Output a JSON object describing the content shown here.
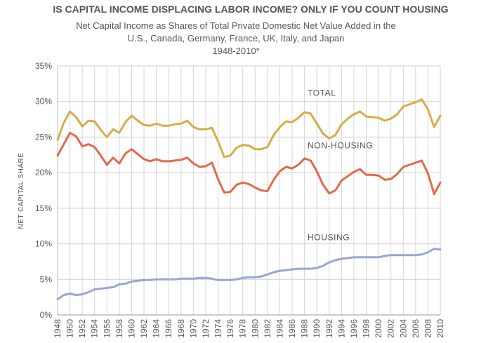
{
  "chart_data": {
    "type": "line",
    "title": "IS CAPITAL INCOME DISPLACING LABOR INCOME? ONLY IF YOU COUNT HOUSING",
    "subtitle_lines": [
      "Net Capital Income as Shares of Total Private Domestic Net Value Added in the",
      "U.S., Canada, Germany, France, UK, Italy, and Japan",
      "1948-2010*"
    ],
    "ylabel": "NET CAPITAL SHARE",
    "xlabel": "",
    "ylim": [
      0,
      35
    ],
    "xlim": [
      1948,
      2010
    ],
    "yticks": [
      0,
      5,
      10,
      15,
      20,
      25,
      30,
      35
    ],
    "ytick_labels": [
      "0%",
      "5%",
      "10%",
      "15%",
      "20%",
      "25%",
      "30%",
      "35%"
    ],
    "xticks": [
      1948,
      1950,
      1952,
      1954,
      1956,
      1958,
      1960,
      1962,
      1964,
      1966,
      1968,
      1970,
      1972,
      1974,
      1976,
      1978,
      1980,
      1982,
      1984,
      1986,
      1988,
      1990,
      1992,
      1994,
      1996,
      1998,
      2000,
      2002,
      2004,
      2006,
      2008,
      2010
    ],
    "grid": true,
    "x": [
      1948,
      1949,
      1950,
      1951,
      1952,
      1953,
      1954,
      1955,
      1956,
      1957,
      1958,
      1959,
      1960,
      1961,
      1962,
      1963,
      1964,
      1965,
      1966,
      1967,
      1968,
      1969,
      1970,
      1971,
      1972,
      1973,
      1974,
      1975,
      1976,
      1977,
      1978,
      1979,
      1980,
      1981,
      1982,
      1983,
      1984,
      1985,
      1986,
      1987,
      1988,
      1989,
      1990,
      1991,
      1992,
      1993,
      1994,
      1995,
      1996,
      1997,
      1998,
      1999,
      2000,
      2001,
      2002,
      2003,
      2004,
      2005,
      2006,
      2007,
      2008,
      2009,
      2010
    ],
    "series": [
      {
        "name": "TOTAL",
        "color": "#D4AE48",
        "values": [
          24.6,
          27.0,
          28.6,
          27.8,
          26.5,
          27.3,
          27.2,
          26.0,
          25.0,
          26.1,
          25.6,
          27.1,
          28.0,
          27.3,
          26.7,
          26.6,
          26.9,
          26.6,
          26.6,
          26.8,
          26.9,
          27.3,
          26.4,
          26.1,
          26.1,
          26.3,
          24.4,
          22.2,
          22.4,
          23.5,
          23.9,
          23.8,
          23.3,
          23.3,
          23.6,
          25.3,
          26.4,
          27.2,
          27.1,
          27.7,
          28.5,
          28.3,
          26.9,
          25.5,
          24.8,
          25.3,
          26.8,
          27.6,
          28.2,
          28.6,
          27.9,
          27.8,
          27.7,
          27.3,
          27.6,
          28.2,
          29.3,
          29.6,
          29.9,
          30.3,
          28.9,
          26.4,
          28.0
        ]
      },
      {
        "name": "NON-HOUSING",
        "color": "#E06B4A",
        "values": [
          22.4,
          24.0,
          25.6,
          25.1,
          23.7,
          24.0,
          23.6,
          22.4,
          21.1,
          22.1,
          21.3,
          22.7,
          23.3,
          22.6,
          21.9,
          21.6,
          21.9,
          21.6,
          21.6,
          21.7,
          21.8,
          22.1,
          21.3,
          20.8,
          20.9,
          21.4,
          19.1,
          17.2,
          17.3,
          18.3,
          18.6,
          18.4,
          17.9,
          17.5,
          17.4,
          19.0,
          20.2,
          20.8,
          20.6,
          21.1,
          22.0,
          21.7,
          20.2,
          18.3,
          17.1,
          17.5,
          18.9,
          19.5,
          20.1,
          20.5,
          19.7,
          19.7,
          19.6,
          19.0,
          19.1,
          19.8,
          20.8,
          21.1,
          21.4,
          21.7,
          19.9,
          17.0,
          18.6
        ]
      },
      {
        "name": "HOUSING",
        "color": "#9BA5D3",
        "values": [
          2.2,
          2.8,
          3.0,
          2.8,
          2.9,
          3.2,
          3.6,
          3.7,
          3.8,
          3.9,
          4.3,
          4.4,
          4.7,
          4.8,
          4.9,
          4.9,
          5.0,
          5.0,
          5.0,
          5.0,
          5.1,
          5.1,
          5.1,
          5.2,
          5.2,
          5.1,
          4.9,
          4.9,
          4.9,
          5.0,
          5.2,
          5.3,
          5.3,
          5.4,
          5.7,
          6.0,
          6.2,
          6.3,
          6.4,
          6.5,
          6.5,
          6.5,
          6.6,
          6.9,
          7.4,
          7.7,
          7.9,
          8.0,
          8.1,
          8.1,
          8.1,
          8.1,
          8.1,
          8.3,
          8.4,
          8.4,
          8.4,
          8.4,
          8.4,
          8.5,
          8.8,
          9.3,
          9.2
        ]
      }
    ],
    "series_labels": [
      {
        "name": "TOTAL",
        "x": 1988.5,
        "y": 30.8
      },
      {
        "name": "NON-HOUSING",
        "x": 1988.5,
        "y": 23.4
      },
      {
        "name": "HOUSING",
        "x": 1988.5,
        "y": 10.5
      }
    ]
  }
}
